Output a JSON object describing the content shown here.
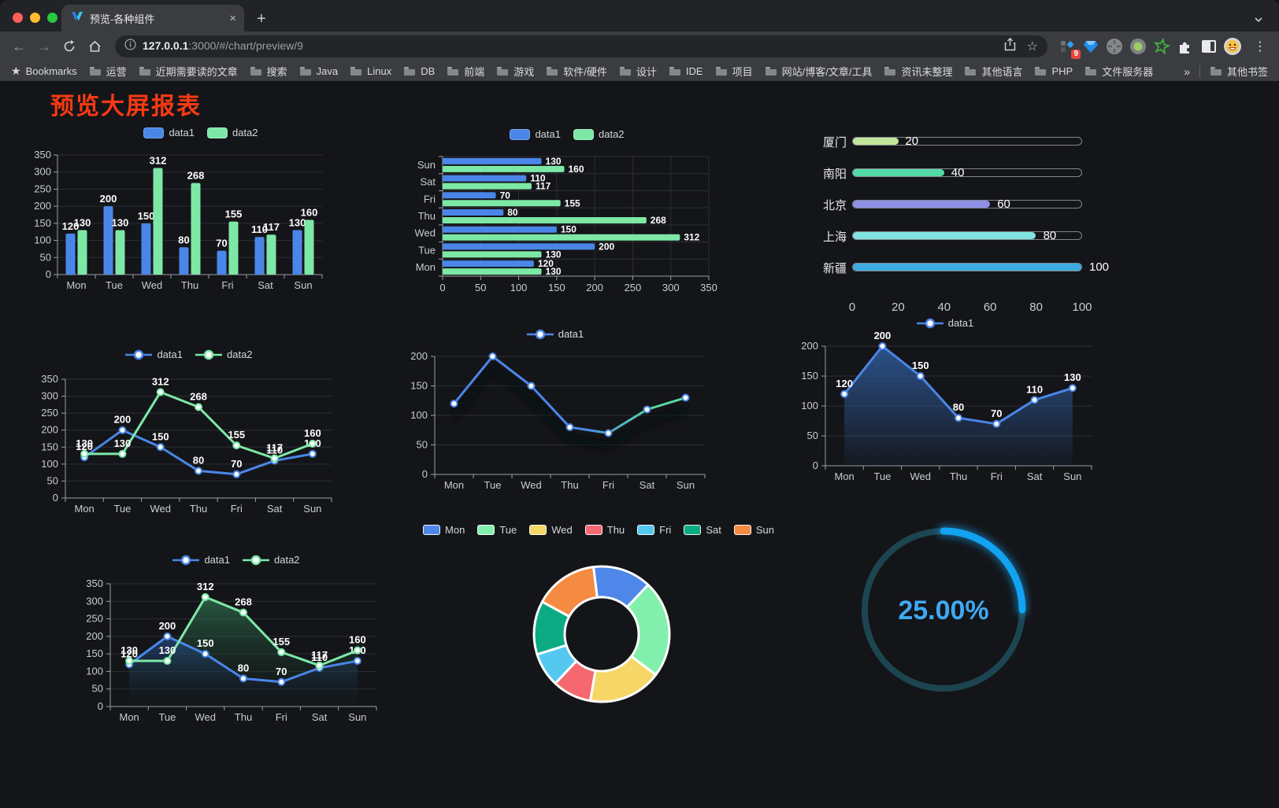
{
  "browser": {
    "tab_title": "预览-各种组件",
    "close_glyph": "×",
    "new_tab_glyph": "+",
    "url_host": "127.0.0.1",
    "url_rest": ":3000/#/chart/preview/9",
    "ext_badge": "9",
    "menu_glyph": "⋮",
    "back_glyph": "←",
    "forward_glyph": "→",
    "star_glyph": "☆",
    "bookmarks_label": "Bookmarks",
    "bookmark_folders": [
      "运营",
      "近期需要读的文章",
      "搜索",
      "Java",
      "Linux",
      "DB",
      "前端",
      "游戏",
      "软件/硬件",
      "设计",
      "IDE",
      "项目",
      "网站/博客/文章/工具",
      "资讯未整理",
      "其他语言",
      "PHP",
      "文件服务器"
    ],
    "bookmarks_overflow": "»",
    "other_bookmarks": "其他书签",
    "traffic_colors": {
      "close": "#ff5f57",
      "minimize": "#febc2e",
      "zoom": "#28c840"
    }
  },
  "page": {
    "title": "预览大屏报表",
    "title_color": "#f63a12"
  },
  "chart_data": [
    {
      "id": "grouped-bar",
      "type": "bar",
      "categories": [
        "Mon",
        "Tue",
        "Wed",
        "Thu",
        "Fri",
        "Sat",
        "Sun"
      ],
      "series": [
        {
          "name": "data1",
          "color": "#4a86e8",
          "values": [
            120,
            200,
            150,
            80,
            70,
            110,
            130
          ]
        },
        {
          "name": "data2",
          "color": "#7de8a6",
          "values": [
            130,
            130,
            312,
            268,
            155,
            117,
            160
          ]
        }
      ],
      "ylim": [
        0,
        350
      ],
      "ytick": 50,
      "legend_position": "top",
      "point_labels": true
    },
    {
      "id": "horizontal-bar",
      "type": "bar-horizontal",
      "categories": [
        "Mon",
        "Tue",
        "Wed",
        "Thu",
        "Fri",
        "Sat",
        "Sun"
      ],
      "categories_rendered_top_to_bottom": [
        "Sun",
        "Sat",
        "Fri",
        "Thu",
        "Wed",
        "Tue",
        "Mon"
      ],
      "series": [
        {
          "name": "data1",
          "color": "#4a86e8",
          "values": [
            120,
            200,
            150,
            80,
            70,
            110,
            130
          ]
        },
        {
          "name": "data2",
          "color": "#7de8a6",
          "values": [
            130,
            130,
            312,
            268,
            155,
            117,
            160
          ]
        }
      ],
      "xlim": [
        0,
        350
      ],
      "xtick": 50,
      "legend_position": "top",
      "point_labels": true
    },
    {
      "id": "city-progress",
      "type": "bar-progress",
      "xlim": [
        0,
        100
      ],
      "xticks": [
        0,
        20,
        40,
        60,
        80,
        100
      ],
      "items": [
        {
          "label": "厦门",
          "value": 20,
          "color": "#c2e59c"
        },
        {
          "label": "南阳",
          "value": 40,
          "color": "#52d9a6"
        },
        {
          "label": "北京",
          "value": 60,
          "color": "#8e90e8"
        },
        {
          "label": "上海",
          "value": 80,
          "color": "#80e3df"
        },
        {
          "label": "新疆",
          "value": 100,
          "color": "#3dabdf"
        }
      ]
    },
    {
      "id": "dual-line",
      "type": "line",
      "categories": [
        "Mon",
        "Tue",
        "Wed",
        "Thu",
        "Fri",
        "Sat",
        "Sun"
      ],
      "series": [
        {
          "name": "data1",
          "color": "#4a86e8",
          "values": [
            120,
            200,
            150,
            80,
            70,
            110,
            130
          ]
        },
        {
          "name": "data2",
          "color": "#7de8a6",
          "values": [
            130,
            130,
            312,
            268,
            155,
            117,
            160
          ]
        }
      ],
      "ylim": [
        0,
        350
      ],
      "ytick": 50,
      "point_labels": true
    },
    {
      "id": "gradient-line",
      "type": "line",
      "categories": [
        "Mon",
        "Tue",
        "Wed",
        "Thu",
        "Fri",
        "Sat",
        "Sun"
      ],
      "series": [
        {
          "name": "data1",
          "color": "#4a86e8",
          "color_end": "#57d9a2",
          "values": [
            120,
            200,
            150,
            80,
            70,
            110,
            130
          ]
        }
      ],
      "ylim": [
        0,
        200
      ],
      "ytick": 50,
      "point_labels": false,
      "shadow": true
    },
    {
      "id": "area-line",
      "type": "line",
      "area": true,
      "categories": [
        "Mon",
        "Tue",
        "Wed",
        "Thu",
        "Fri",
        "Sat",
        "Sun"
      ],
      "series": [
        {
          "name": "data1",
          "color": "#4a86e8",
          "values": [
            120,
            200,
            150,
            80,
            70,
            110,
            130
          ],
          "area_from": "rgba(47,92,158,0.85)",
          "area_to": "rgba(47,92,158,0.05)"
        }
      ],
      "ylim": [
        0,
        200
      ],
      "ytick": 50,
      "point_labels": true
    },
    {
      "id": "dual-area-line",
      "type": "line",
      "area": true,
      "categories": [
        "Mon",
        "Tue",
        "Wed",
        "Thu",
        "Fri",
        "Sat",
        "Sun"
      ],
      "series": [
        {
          "name": "data1",
          "color": "#4a86e8",
          "values": [
            120,
            200,
            150,
            80,
            70,
            110,
            130
          ],
          "area_from": "rgba(42,86,158,0.6)",
          "area_to": "rgba(15,25,40,0.04)"
        },
        {
          "name": "data2",
          "color": "#7de8a6",
          "values": [
            130,
            130,
            312,
            268,
            155,
            117,
            160
          ],
          "area_from": "rgba(52,128,88,0.65)",
          "area_to": "rgba(20,40,30,0.04)"
        }
      ],
      "ylim": [
        0,
        350
      ],
      "ytick": 50,
      "point_labels": true
    },
    {
      "id": "donut",
      "type": "pie",
      "start_angle_deg": -7,
      "items": [
        {
          "label": "Mon",
          "value": 120,
          "color": "#4e87e9"
        },
        {
          "label": "Tue",
          "value": 200,
          "color": "#83efad"
        },
        {
          "label": "Wed",
          "value": 150,
          "color": "#f5d666"
        },
        {
          "label": "Thu",
          "value": 80,
          "color": "#f5686f"
        },
        {
          "label": "Fri",
          "value": 70,
          "color": "#55c8f0"
        },
        {
          "label": "Sat",
          "value": 110,
          "color": "#0caa83"
        },
        {
          "label": "Sun",
          "value": 130,
          "color": "#f58b42"
        }
      ]
    },
    {
      "id": "gauge",
      "type": "gauge",
      "value": 25,
      "display": "25.00%",
      "color": "#12a3f2",
      "track_color": "#1c4551",
      "text_color": "#3fa9f2"
    }
  ]
}
